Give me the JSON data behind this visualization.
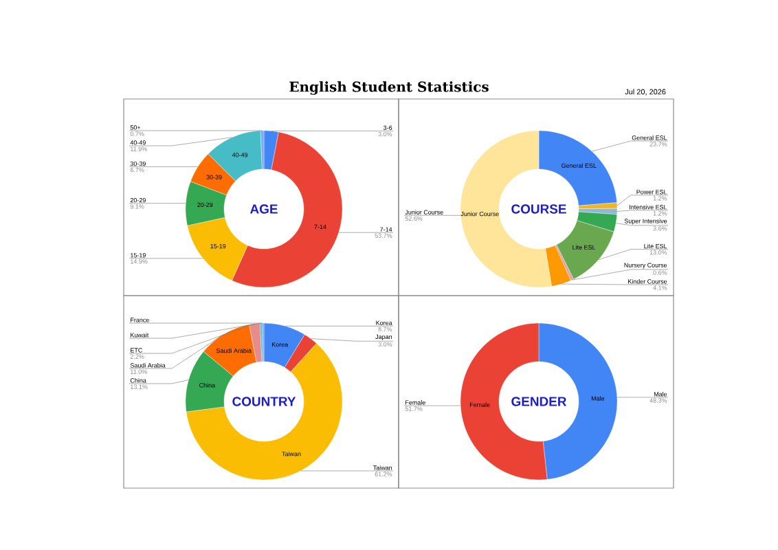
{
  "chart_data": [
    {
      "type": "donut",
      "title": "AGE",
      "annotations": [
        "English Student Statistics",
        "Jul 20, 2026"
      ],
      "categories": [
        "3-6",
        "7-14",
        "15-19",
        "20-29",
        "30-39",
        "40-49",
        "50+"
      ],
      "values": [
        3.0,
        53.7,
        14.9,
        9.1,
        6.7,
        11.9,
        0.7
      ],
      "value_labels": [
        "3.0%",
        "53.7%",
        "14.9%",
        "9.1%",
        "6.7%",
        "11.9%",
        "0.7%"
      ],
      "colors": [
        "#4285f4",
        "#ea4335",
        "#fbbc04",
        "#34a853",
        "#ff6d01",
        "#46bdc6",
        "#7baaf7"
      ]
    },
    {
      "type": "donut",
      "title": "COURSE",
      "categories": [
        "General ESL",
        "Power ESL",
        "Intensive ESL",
        "Super Intensive",
        "Lite ESL",
        "Nursery Course",
        "Kinder Course",
        "Junior Course"
      ],
      "values": [
        23.7,
        1.2,
        1.2,
        3.6,
        13.0,
        0.6,
        4.1,
        52.6
      ],
      "value_labels": [
        "23.7%",
        "1.2%",
        "1.2%",
        "3.6%",
        "13.0%",
        "0.6%",
        "4.1%",
        "52.6%"
      ],
      "colors": [
        "#4285f4",
        "#f1b626",
        "#8fb8d8",
        "#34a853",
        "#6aa84f",
        "#e6a0a0",
        "#ff9900",
        "#ffe599"
      ]
    },
    {
      "type": "donut",
      "title": "COUNTRY",
      "categories": [
        "Korea",
        "Japan",
        "Taiwan",
        "China",
        "Saudi Arabia",
        "ETC",
        "Kuwait",
        "France"
      ],
      "values": [
        8.7,
        3.0,
        61.2,
        13.1,
        11.0,
        2.2,
        0.4,
        0.4
      ],
      "value_labels": [
        "8.7%",
        "3.0%",
        "61.2%",
        "13.1%",
        "11.0%",
        "2.2%",
        null,
        null
      ],
      "colors": [
        "#4285f4",
        "#ea4335",
        "#fbbc04",
        "#34a853",
        "#ff6d01",
        "#e88b8b",
        "#46bdc6",
        "#7baaf7"
      ]
    },
    {
      "type": "donut",
      "title": "GENDER",
      "categories": [
        "Male",
        "Female"
      ],
      "values": [
        48.3,
        51.7
      ],
      "value_labels": [
        "48.3%",
        "51.7%"
      ],
      "colors": [
        "#4285f4",
        "#ea4335"
      ]
    }
  ]
}
